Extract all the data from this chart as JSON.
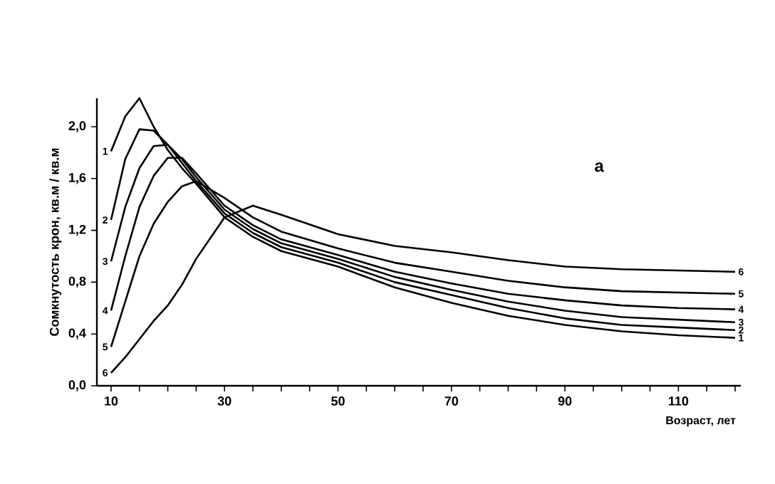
{
  "chart_data": {
    "type": "line",
    "xlabel": "Возраст, лет",
    "ylabel": "Сомкнутость крон, кв.м / кв.м",
    "annotations": [
      "а"
    ],
    "x": [
      10,
      12.5,
      15,
      17.5,
      20,
      22.5,
      25,
      30,
      35,
      40,
      50,
      60,
      70,
      80,
      90,
      100,
      110,
      120
    ],
    "series": [
      {
        "name": "1",
        "color": "#000000",
        "values": [
          1.81,
          2.08,
          2.22,
          2.0,
          1.82,
          1.68,
          1.56,
          1.3,
          1.15,
          1.04,
          0.92,
          0.76,
          0.64,
          0.54,
          0.47,
          0.42,
          0.39,
          0.37
        ]
      },
      {
        "name": "2",
        "color": "#000000",
        "values": [
          1.28,
          1.75,
          1.98,
          1.97,
          1.86,
          1.72,
          1.58,
          1.33,
          1.18,
          1.07,
          0.95,
          0.8,
          0.7,
          0.6,
          0.52,
          0.47,
          0.45,
          0.43
        ]
      },
      {
        "name": "3",
        "color": "#000000",
        "values": [
          0.96,
          1.38,
          1.68,
          1.85,
          1.86,
          1.75,
          1.61,
          1.36,
          1.21,
          1.1,
          0.98,
          0.84,
          0.74,
          0.65,
          0.58,
          0.53,
          0.51,
          0.49
        ]
      },
      {
        "name": "4",
        "color": "#000000",
        "values": [
          0.58,
          1.0,
          1.38,
          1.62,
          1.76,
          1.76,
          1.64,
          1.39,
          1.24,
          1.13,
          1.01,
          0.88,
          0.79,
          0.71,
          0.66,
          0.62,
          0.6,
          0.59
        ]
      },
      {
        "name": "5",
        "color": "#000000",
        "values": [
          0.3,
          0.65,
          1.0,
          1.25,
          1.42,
          1.54,
          1.58,
          1.45,
          1.3,
          1.19,
          1.06,
          0.95,
          0.88,
          0.81,
          0.76,
          0.73,
          0.72,
          0.71
        ]
      },
      {
        "name": "6",
        "color": "#000000",
        "values": [
          0.1,
          0.22,
          0.36,
          0.5,
          0.62,
          0.78,
          0.98,
          1.3,
          1.39,
          1.32,
          1.17,
          1.08,
          1.03,
          0.97,
          0.92,
          0.9,
          0.89,
          0.88
        ]
      }
    ],
    "xlim": [
      7.5,
      121
    ],
    "ylim": [
      0,
      2.22
    ],
    "xticks": [
      10,
      {
        "value": 15,
        "label": null
      },
      {
        "value": 20,
        "label": null
      },
      {
        "value": 25,
        "label": null
      },
      30,
      {
        "value": 35,
        "label": null
      },
      {
        "value": 40,
        "label": null
      },
      {
        "value": 45,
        "label": null
      },
      50,
      {
        "value": 55,
        "label": null
      },
      {
        "value": 60,
        "label": null
      },
      {
        "value": 65,
        "label": null
      },
      70,
      {
        "value": 75,
        "label": null
      },
      {
        "value": 80,
        "label": null
      },
      {
        "value": 85,
        "label": null
      },
      90,
      {
        "value": 95,
        "label": null
      },
      {
        "value": 100,
        "label": null
      },
      {
        "value": 105,
        "label": null
      },
      110,
      {
        "value": 115,
        "label": null
      },
      {
        "value": 120,
        "label": null
      }
    ],
    "yticks": [
      {
        "value": 0,
        "label": "0,0"
      },
      {
        "value": 0.4,
        "label": "0,4"
      },
      {
        "value": 0.8,
        "label": "0,8"
      },
      {
        "value": 1.2,
        "label": "1,2"
      },
      {
        "value": 1.6,
        "label": "1,6"
      },
      {
        "value": 2.0,
        "label": "2,0"
      }
    ],
    "marker": "none",
    "line_style": "solid"
  }
}
